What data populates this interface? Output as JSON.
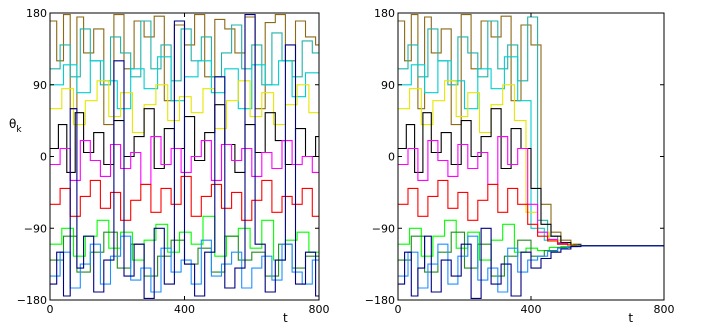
{
  "chart_data": [
    {
      "type": "line",
      "step": true,
      "xlabel": "t",
      "ylabel": "θ",
      "ylabel_subscript": "k",
      "xlim": [
        0,
        800
      ],
      "ylim": [
        -180,
        180
      ],
      "xticks": [
        "0",
        "400",
        "800"
      ],
      "yticks": [
        "180",
        "90",
        "0",
        "−90",
        "−180"
      ],
      "grid": false,
      "behaviour": "non-converging",
      "series": [
        {
          "color": "#8B6914",
          "x": [
            0,
            20,
            40,
            60,
            80,
            100,
            130,
            160,
            190,
            220,
            250,
            280,
            310,
            340,
            370,
            400,
            430,
            460,
            490,
            520,
            550,
            580,
            610,
            640,
            670,
            700,
            730,
            760,
            790
          ],
          "y": [
            170,
            120,
            178,
            60,
            175,
            130,
            160,
            40,
            178,
            110,
            170,
            150,
            176,
            70,
            165,
            140,
            178,
            100,
            172,
            160,
            130,
            175,
            60,
            168,
            178,
            120,
            170,
            150,
            140
          ]
        },
        {
          "color": "#20B2AA",
          "x": [
            0,
            30,
            60,
            90,
            120,
            150,
            180,
            210,
            240,
            270,
            300,
            330,
            360,
            390,
            420,
            450,
            480,
            510,
            540,
            570,
            600,
            630,
            660,
            690,
            720,
            750,
            780
          ],
          "y": [
            110,
            140,
            100,
            160,
            120,
            90,
            150,
            130,
            100,
            170,
            110,
            140,
            95,
            160,
            120,
            150,
            100,
            130,
            165,
            110,
            140,
            90,
            155,
            120,
            100,
            145,
            130
          ]
        },
        {
          "color": "#00CED1",
          "x": [
            0,
            40,
            80,
            120,
            160,
            200,
            240,
            280,
            320,
            360,
            400,
            440,
            480,
            520,
            560,
            600,
            640,
            680,
            720,
            760
          ],
          "y": [
            90,
            115,
            80,
            120,
            95,
            60,
            110,
            85,
            125,
            70,
            100,
            120,
            80,
            110,
            60,
            115,
            90,
            120,
            75,
            105
          ]
        },
        {
          "color": "#E6E600",
          "x": [
            0,
            35,
            70,
            105,
            140,
            175,
            210,
            245,
            280,
            315,
            350,
            385,
            420,
            455,
            490,
            525,
            560,
            595,
            630,
            665,
            700,
            735,
            770
          ],
          "y": [
            60,
            85,
            40,
            70,
            95,
            50,
            80,
            30,
            65,
            90,
            45,
            75,
            55,
            85,
            35,
            70,
            95,
            50,
            80,
            40,
            65,
            90,
            55
          ]
        },
        {
          "color": "#000000",
          "x": [
            0,
            25,
            50,
            75,
            100,
            130,
            160,
            190,
            220,
            250,
            280,
            310,
            340,
            370,
            400,
            430,
            460,
            490,
            520,
            550,
            580,
            610,
            640,
            670,
            700,
            730,
            760,
            790
          ],
          "y": [
            10,
            40,
            -20,
            55,
            5,
            30,
            -10,
            45,
            0,
            25,
            60,
            -15,
            35,
            10,
            50,
            -5,
            30,
            65,
            15,
            -20,
            40,
            5,
            55,
            20,
            -10,
            35,
            0,
            25
          ]
        },
        {
          "color": "#FF00FF",
          "x": [
            0,
            30,
            60,
            90,
            120,
            150,
            180,
            210,
            240,
            270,
            300,
            330,
            360,
            390,
            420,
            450,
            480,
            510,
            540,
            570,
            600,
            630,
            660,
            690,
            720,
            750,
            780
          ],
          "y": [
            -10,
            10,
            -30,
            20,
            -5,
            -25,
            15,
            -15,
            5,
            -35,
            25,
            -10,
            10,
            -20,
            0,
            20,
            -30,
            15,
            -5,
            10,
            -25,
            5,
            -15,
            20,
            -10,
            0,
            -20
          ]
        },
        {
          "color": "#FF0000",
          "x": [
            0,
            30,
            60,
            90,
            120,
            150,
            180,
            210,
            240,
            270,
            300,
            330,
            360,
            390,
            420,
            450,
            480,
            510,
            540,
            570,
            600,
            630,
            660,
            690,
            720,
            750,
            780
          ],
          "y": [
            -60,
            -40,
            -75,
            -50,
            -30,
            -65,
            -45,
            -80,
            -55,
            -35,
            -70,
            -40,
            -60,
            -25,
            -75,
            -50,
            -35,
            -65,
            -45,
            -80,
            -55,
            -30,
            -70,
            -50,
            -60,
            -40,
            -75
          ]
        },
        {
          "color": "#00FF00",
          "x": [
            0,
            35,
            70,
            105,
            140,
            175,
            210,
            245,
            280,
            315,
            350,
            385,
            420,
            455,
            490,
            525,
            560,
            595,
            630,
            665,
            700,
            735,
            770
          ],
          "y": [
            -110,
            -90,
            -125,
            -100,
            -80,
            -115,
            -95,
            -130,
            -105,
            -85,
            -120,
            -95,
            -110,
            -75,
            -125,
            -100,
            -90,
            -115,
            -80,
            -130,
            -105,
            -95,
            -120
          ]
        },
        {
          "color": "#228B22",
          "x": [
            0,
            40,
            80,
            120,
            160,
            200,
            240,
            280,
            320,
            360,
            400,
            440,
            480,
            520,
            560,
            600,
            640,
            680,
            720,
            760
          ],
          "y": [
            -130,
            -100,
            -145,
            -120,
            -95,
            -140,
            -110,
            -150,
            -125,
            -105,
            -135,
            -115,
            -145,
            -100,
            -130,
            -120,
            -150,
            -110,
            -140,
            -125
          ]
        },
        {
          "color": "#1E90FF",
          "x": [
            0,
            30,
            60,
            90,
            120,
            150,
            180,
            210,
            240,
            270,
            300,
            330,
            360,
            390,
            420,
            450,
            480,
            510,
            540,
            570,
            600,
            630,
            660,
            690,
            720,
            750,
            780
          ],
          "y": [
            -150,
            -120,
            -165,
            -135,
            -110,
            -160,
            -125,
            -100,
            -155,
            -140,
            -170,
            -115,
            -145,
            -130,
            -160,
            -105,
            -150,
            -135,
            -120,
            -165,
            -140,
            -125,
            -155,
            -110,
            -145,
            -160,
            -130
          ]
        },
        {
          "color": "#000080",
          "x": [
            0,
            20,
            40,
            60,
            80,
            100,
            130,
            160,
            190,
            220,
            250,
            280,
            310,
            340,
            370,
            400,
            430,
            460,
            490,
            520,
            550,
            580,
            610,
            640,
            670,
            700,
            730,
            760,
            790
          ],
          "y": [
            -160,
            -120,
            -175,
            60,
            -140,
            -100,
            -170,
            -130,
            120,
            -150,
            -110,
            -178,
            -90,
            -160,
            170,
            -135,
            -175,
            -120,
            100,
            -165,
            -140,
            178,
            -110,
            -170,
            -130,
            140,
            -160,
            -120,
            -175
          ]
        }
      ]
    },
    {
      "type": "line",
      "step": true,
      "xlabel": "t",
      "ylabel": "",
      "xlim": [
        0,
        800
      ],
      "ylim": [
        -180,
        180
      ],
      "xticks": [
        "0",
        "400",
        "800"
      ],
      "yticks": [
        "180",
        "90",
        "0",
        "−90",
        "−180"
      ],
      "grid": false,
      "behaviour": "converging",
      "converge_t": 560,
      "converge_value": -112,
      "series": [
        {
          "color": "#8B6914",
          "x": [
            0,
            20,
            40,
            60,
            80,
            100,
            130,
            160,
            190,
            220,
            250,
            280,
            310,
            340,
            370,
            400,
            430,
            460,
            490,
            520,
            550
          ],
          "y": [
            170,
            120,
            178,
            60,
            175,
            130,
            160,
            40,
            178,
            110,
            170,
            150,
            176,
            70,
            165,
            140,
            -60,
            -95,
            -105,
            -110,
            -112
          ]
        },
        {
          "color": "#20B2AA",
          "x": [
            0,
            30,
            60,
            90,
            120,
            150,
            180,
            210,
            240,
            270,
            300,
            330,
            360,
            390,
            420,
            450,
            480,
            510,
            540
          ],
          "y": [
            110,
            140,
            100,
            160,
            120,
            90,
            150,
            130,
            100,
            170,
            110,
            140,
            95,
            175,
            -80,
            -100,
            -108,
            -111,
            -112
          ]
        },
        {
          "color": "#00CED1",
          "x": [
            0,
            40,
            80,
            120,
            160,
            200,
            240,
            280,
            320,
            360,
            400,
            440,
            480,
            520,
            540
          ],
          "y": [
            90,
            115,
            80,
            120,
            95,
            60,
            110,
            85,
            125,
            70,
            -90,
            -105,
            -110,
            -111,
            -112
          ]
        },
        {
          "color": "#E6E600",
          "x": [
            0,
            35,
            70,
            105,
            140,
            175,
            210,
            245,
            280,
            315,
            350,
            385,
            420,
            455,
            490,
            525
          ],
          "y": [
            60,
            85,
            40,
            70,
            95,
            50,
            80,
            30,
            65,
            90,
            45,
            -70,
            -95,
            -105,
            -110,
            -112
          ]
        },
        {
          "color": "#000000",
          "x": [
            0,
            25,
            50,
            75,
            100,
            130,
            160,
            190,
            220,
            250,
            280,
            310,
            340,
            370,
            400,
            430,
            460,
            490,
            520,
            550
          ],
          "y": [
            10,
            40,
            -20,
            55,
            5,
            30,
            -10,
            45,
            0,
            25,
            60,
            -15,
            35,
            10,
            -40,
            -85,
            -100,
            -108,
            -111,
            -112
          ]
        },
        {
          "color": "#FF00FF",
          "x": [
            0,
            30,
            60,
            90,
            120,
            150,
            180,
            210,
            240,
            270,
            300,
            330,
            360,
            390,
            420,
            450,
            480,
            510,
            540
          ],
          "y": [
            -10,
            10,
            -30,
            20,
            -5,
            -25,
            15,
            -15,
            5,
            -35,
            25,
            -10,
            10,
            -60,
            -95,
            -104,
            -109,
            -111,
            -112
          ]
        },
        {
          "color": "#FF0000",
          "x": [
            0,
            30,
            60,
            90,
            120,
            150,
            180,
            210,
            240,
            270,
            300,
            330,
            360,
            390,
            420,
            450,
            480,
            510,
            540
          ],
          "y": [
            -60,
            -40,
            -75,
            -50,
            -30,
            -65,
            -45,
            -80,
            -55,
            -35,
            -70,
            -40,
            -60,
            -85,
            -100,
            -106,
            -110,
            -111,
            -112
          ]
        },
        {
          "color": "#00FF00",
          "x": [
            0,
            35,
            70,
            105,
            140,
            175,
            210,
            245,
            280,
            315,
            350,
            385,
            420,
            455,
            490,
            525
          ],
          "y": [
            -110,
            -90,
            -125,
            -100,
            -80,
            -115,
            -95,
            -130,
            -105,
            -85,
            -120,
            -115,
            -118,
            -114,
            -113,
            -112
          ]
        },
        {
          "color": "#228B22",
          "x": [
            0,
            40,
            80,
            120,
            160,
            200,
            240,
            280,
            320,
            360,
            400,
            440,
            480,
            520
          ],
          "y": [
            -130,
            -100,
            -145,
            -120,
            -95,
            -140,
            -110,
            -150,
            -125,
            -105,
            -125,
            -118,
            -114,
            -112
          ]
        },
        {
          "color": "#1E90FF",
          "x": [
            0,
            30,
            60,
            90,
            120,
            150,
            180,
            210,
            240,
            270,
            300,
            330,
            360,
            390,
            420,
            450,
            480,
            510,
            540
          ],
          "y": [
            -150,
            -120,
            -165,
            -135,
            -110,
            -160,
            -125,
            -100,
            -155,
            -140,
            -170,
            -115,
            -145,
            -130,
            -125,
            -119,
            -115,
            -113,
            -112
          ]
        },
        {
          "color": "#000080",
          "x": [
            0,
            20,
            40,
            60,
            80,
            100,
            130,
            160,
            190,
            220,
            250,
            280,
            310,
            340,
            370,
            400,
            430,
            460,
            490,
            520,
            550
          ],
          "y": [
            -160,
            -120,
            -175,
            -140,
            -100,
            -170,
            -130,
            -150,
            -110,
            -178,
            -90,
            -160,
            -135,
            -175,
            -120,
            -140,
            -128,
            -120,
            -116,
            -113,
            -112
          ]
        }
      ]
    }
  ]
}
